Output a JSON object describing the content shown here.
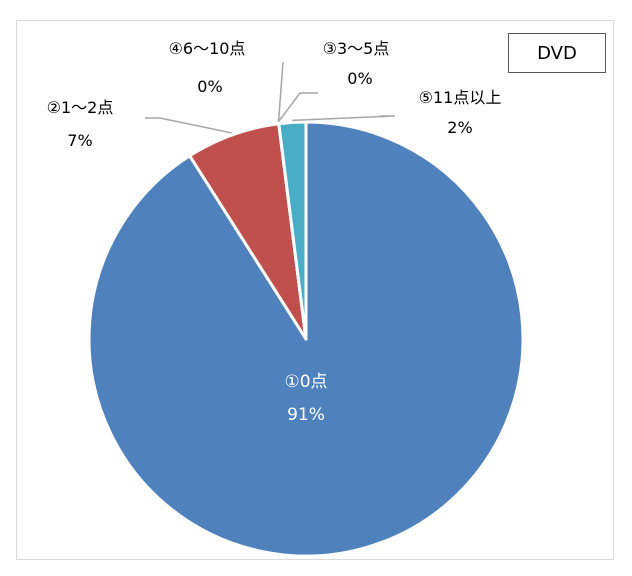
{
  "tag_label": "DVD",
  "colors": {
    "slice_0": "#4f81bd",
    "slice_1": "#c0504d",
    "slice_2": "#9bbb59",
    "slice_3": "#8064a2",
    "slice_4": "#4bacc6",
    "leader": "#a6a6a6",
    "border": "#d9d9d9"
  },
  "chart_data": {
    "type": "pie",
    "title": "",
    "start_angle_deg": 0,
    "direction": "clockwise",
    "categories": [
      "①0点",
      "②1～2点",
      "③3～5点",
      "④6～10点",
      "⑤11点以上"
    ],
    "values": [
      91,
      7,
      0,
      0,
      2
    ],
    "percent_labels": [
      "91%",
      "7%",
      "0%",
      "0%",
      "2%"
    ],
    "legend": "none"
  }
}
